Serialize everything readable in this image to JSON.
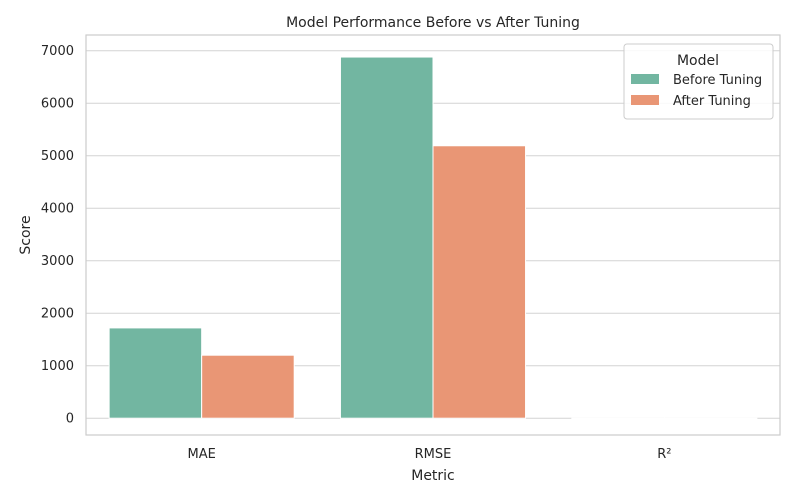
{
  "chart_data": {
    "type": "bar",
    "title": "Model Performance Before vs After Tuning",
    "xlabel": "Metric",
    "ylabel": "Score",
    "categories": [
      "MAE",
      "RMSE",
      "R²"
    ],
    "series": [
      {
        "name": "Before Tuning",
        "values": [
          1720,
          6880,
          0.82
        ],
        "color": "#72b6a1"
      },
      {
        "name": "After Tuning",
        "values": [
          1200,
          5190,
          0.9
        ],
        "color": "#e99675"
      }
    ],
    "ylim": [
      -320,
      7300
    ],
    "yticks": [
      0,
      1000,
      2000,
      3000,
      4000,
      5000,
      6000,
      7000
    ],
    "grid": true,
    "legend": {
      "title": "Model",
      "placement": "top-right"
    }
  }
}
